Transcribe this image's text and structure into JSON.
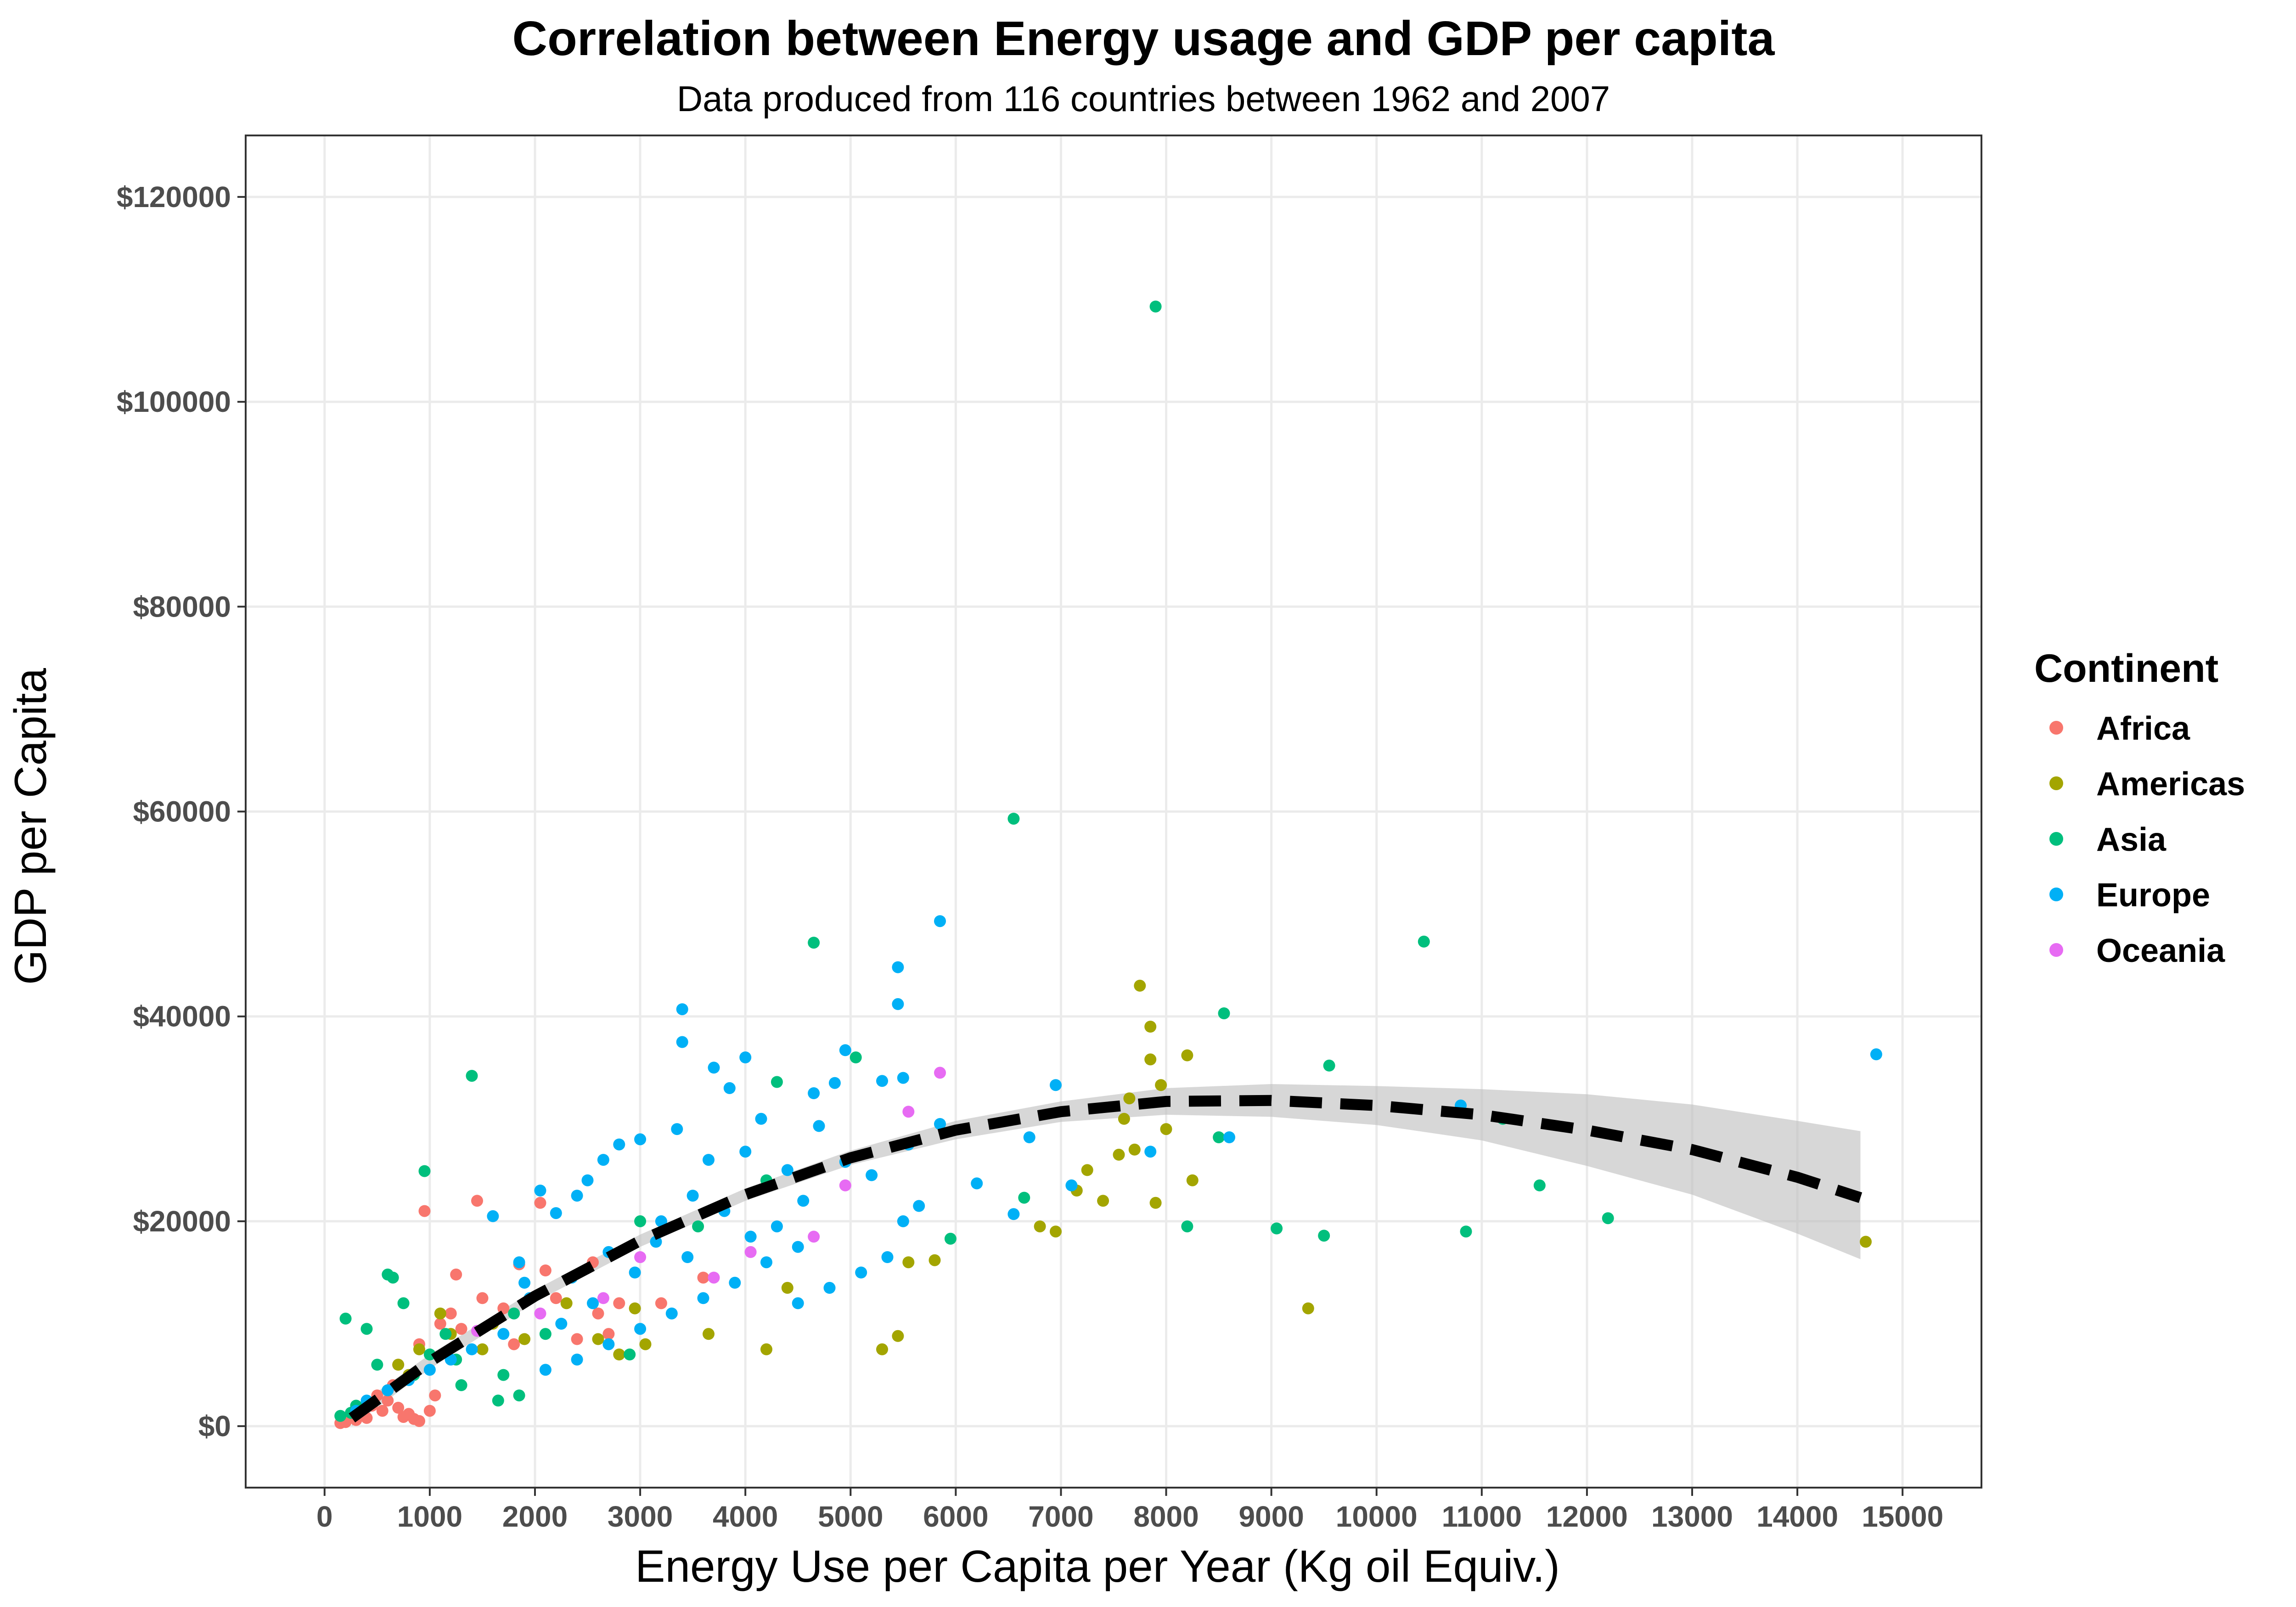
{
  "chart_data": {
    "type": "scatter",
    "title": "Correlation between Energy usage and GDP per capita",
    "subtitle": "Data produced from 116 countries between 1962 and 2007",
    "xlabel": "Energy Use per Capita per Year (Kg oil Equiv.)",
    "ylabel": "GDP per Capita",
    "xlim": [
      -750,
      15750
    ],
    "ylim": [
      -6000,
      126000
    ],
    "x_ticks": [
      0,
      1000,
      2000,
      3000,
      4000,
      5000,
      6000,
      7000,
      8000,
      9000,
      10000,
      11000,
      12000,
      13000,
      14000,
      15000
    ],
    "x_tick_labels": [
      "0",
      "1000",
      "2000",
      "3000",
      "4000",
      "5000",
      "6000",
      "7000",
      "8000",
      "9000",
      "10000",
      "11000",
      "12000",
      "13000",
      "14000",
      "15000"
    ],
    "y_ticks": [
      0,
      20000,
      40000,
      60000,
      80000,
      100000,
      120000
    ],
    "y_tick_labels": [
      "$0",
      "$20000",
      "$40000",
      "$60000",
      "$80000",
      "$100000",
      "$120000"
    ],
    "grid": true,
    "legend": {
      "title": "Continent",
      "position": "right",
      "entries": [
        {
          "name": "Africa",
          "color": "#F8766D"
        },
        {
          "name": "Americas",
          "color": "#A3A500"
        },
        {
          "name": "Asia",
          "color": "#00BF7D"
        },
        {
          "name": "Europe",
          "color": "#00B0F6"
        },
        {
          "name": "Oceania",
          "color": "#E76BF3"
        }
      ]
    },
    "series": [
      {
        "name": "Africa",
        "color": "#F8766D",
        "points": [
          [
            950,
            21000
          ],
          [
            1450,
            22000
          ],
          [
            2050,
            21800
          ],
          [
            1250,
            14800
          ],
          [
            1850,
            15800
          ],
          [
            2100,
            15200
          ],
          [
            2550,
            16000
          ],
          [
            1500,
            12500
          ],
          [
            1700,
            11500
          ],
          [
            2200,
            12500
          ],
          [
            2600,
            11000
          ],
          [
            2800,
            12000
          ],
          [
            3200,
            12000
          ],
          [
            1300,
            9500
          ],
          [
            1800,
            8000
          ],
          [
            2400,
            8500
          ],
          [
            2700,
            9000
          ],
          [
            3600,
            14500
          ],
          [
            500,
            3000
          ],
          [
            550,
            1500
          ],
          [
            600,
            2500
          ],
          [
            700,
            1800
          ],
          [
            750,
            900
          ],
          [
            800,
            1200
          ],
          [
            850,
            700
          ],
          [
            900,
            500
          ],
          [
            1000,
            1500
          ],
          [
            400,
            800
          ],
          [
            300,
            600
          ],
          [
            350,
            1200
          ],
          [
            200,
            400
          ],
          [
            150,
            300
          ],
          [
            250,
            900
          ],
          [
            650,
            4000
          ],
          [
            700,
            6000
          ],
          [
            900,
            8000
          ],
          [
            1100,
            10000
          ],
          [
            1200,
            11000
          ],
          [
            450,
            2000
          ],
          [
            1050,
            3000
          ]
        ]
      },
      {
        "name": "Americas",
        "color": "#A3A500",
        "points": [
          [
            7750,
            43000
          ],
          [
            7850,
            39000
          ],
          [
            7850,
            35800
          ],
          [
            8200,
            36200
          ],
          [
            7950,
            33300
          ],
          [
            7650,
            32000
          ],
          [
            7600,
            30000
          ],
          [
            8000,
            29000
          ],
          [
            7700,
            27000
          ],
          [
            7550,
            26500
          ],
          [
            7900,
            21800
          ],
          [
            8250,
            24000
          ],
          [
            7250,
            25000
          ],
          [
            6800,
            19500
          ],
          [
            6950,
            19000
          ],
          [
            7150,
            23000
          ],
          [
            7400,
            22000
          ],
          [
            5550,
            16000
          ],
          [
            5800,
            16200
          ],
          [
            4400,
            13500
          ],
          [
            4200,
            7500
          ],
          [
            5300,
            7500
          ],
          [
            5450,
            8800
          ],
          [
            9350,
            11500
          ],
          [
            14650,
            18000
          ],
          [
            3650,
            9000
          ],
          [
            2800,
            7000
          ],
          [
            2600,
            8500
          ],
          [
            3050,
            8000
          ],
          [
            2950,
            11500
          ],
          [
            1600,
            10000
          ],
          [
            1500,
            7500
          ],
          [
            1900,
            8500
          ],
          [
            1100,
            11000
          ],
          [
            900,
            7500
          ],
          [
            700,
            6000
          ],
          [
            800,
            5000
          ],
          [
            600,
            3500
          ],
          [
            1200,
            9000
          ],
          [
            2300,
            12000
          ]
        ]
      },
      {
        "name": "Asia",
        "color": "#00BF7D",
        "points": [
          [
            7900,
            109300
          ],
          [
            6550,
            59300
          ],
          [
            4650,
            47200
          ],
          [
            10450,
            47300
          ],
          [
            8550,
            40300
          ],
          [
            1400,
            34200
          ],
          [
            5050,
            36000
          ],
          [
            4300,
            33600
          ],
          [
            9550,
            35200
          ],
          [
            11200,
            30000
          ],
          [
            8500,
            28200
          ],
          [
            11550,
            23500
          ],
          [
            12200,
            20300
          ],
          [
            9050,
            19300
          ],
          [
            9500,
            18600
          ],
          [
            8200,
            19500
          ],
          [
            10850,
            19000
          ],
          [
            6650,
            22300
          ],
          [
            5950,
            18300
          ],
          [
            950,
            24900
          ],
          [
            600,
            14800
          ],
          [
            650,
            14500
          ],
          [
            200,
            10500
          ],
          [
            400,
            9500
          ],
          [
            750,
            12000
          ],
          [
            1700,
            5000
          ],
          [
            1850,
            3000
          ],
          [
            1650,
            2500
          ],
          [
            1300,
            4000
          ],
          [
            1000,
            7000
          ],
          [
            1150,
            9000
          ],
          [
            2100,
            9000
          ],
          [
            2900,
            7000
          ],
          [
            300,
            2000
          ],
          [
            250,
            1300
          ],
          [
            150,
            1000
          ],
          [
            500,
            6000
          ],
          [
            850,
            5000
          ],
          [
            1250,
            6500
          ],
          [
            1800,
            11000
          ],
          [
            3000,
            20000
          ],
          [
            3550,
            19500
          ],
          [
            4200,
            24000
          ]
        ]
      },
      {
        "name": "Europe",
        "color": "#00B0F6",
        "points": [
          [
            14750,
            36300
          ],
          [
            5850,
            49300
          ],
          [
            5450,
            44800
          ],
          [
            5450,
            41200
          ],
          [
            3400,
            40700
          ],
          [
            3400,
            37500
          ],
          [
            4000,
            36000
          ],
          [
            4950,
            36700
          ],
          [
            5300,
            33700
          ],
          [
            5500,
            34000
          ],
          [
            4850,
            33500
          ],
          [
            4650,
            32500
          ],
          [
            3700,
            35000
          ],
          [
            3850,
            33000
          ],
          [
            4150,
            30000
          ],
          [
            4700,
            29300
          ],
          [
            3350,
            29000
          ],
          [
            3000,
            28000
          ],
          [
            2800,
            27500
          ],
          [
            2650,
            26000
          ],
          [
            2500,
            24000
          ],
          [
            2400,
            22500
          ],
          [
            2050,
            23000
          ],
          [
            2200,
            20800
          ],
          [
            1600,
            20500
          ],
          [
            1850,
            16000
          ],
          [
            1900,
            14000
          ],
          [
            2350,
            14500
          ],
          [
            2700,
            17000
          ],
          [
            3200,
            20000
          ],
          [
            3500,
            22500
          ],
          [
            3650,
            26000
          ],
          [
            4000,
            26800
          ],
          [
            4400,
            25000
          ],
          [
            4550,
            22000
          ],
          [
            4950,
            25800
          ],
          [
            5200,
            24500
          ],
          [
            5550,
            27500
          ],
          [
            5650,
            21500
          ],
          [
            6200,
            23700
          ],
          [
            6550,
            20700
          ],
          [
            6700,
            28200
          ],
          [
            6950,
            33300
          ],
          [
            7100,
            23500
          ],
          [
            7850,
            26800
          ],
          [
            8600,
            28200
          ],
          [
            10800,
            31300
          ],
          [
            5850,
            29500
          ],
          [
            5500,
            20000
          ],
          [
            4500,
            17500
          ],
          [
            4200,
            16000
          ],
          [
            3900,
            14000
          ],
          [
            3600,
            12500
          ],
          [
            3300,
            11000
          ],
          [
            3000,
            9500
          ],
          [
            2700,
            8000
          ],
          [
            2400,
            6500
          ],
          [
            2100,
            5500
          ],
          [
            1700,
            9000
          ],
          [
            1400,
            7500
          ],
          [
            1200,
            6500
          ],
          [
            1000,
            5500
          ],
          [
            800,
            4500
          ],
          [
            600,
            3500
          ],
          [
            400,
            2500
          ],
          [
            300,
            1500
          ],
          [
            4500,
            12000
          ],
          [
            4800,
            13500
          ],
          [
            5100,
            15000
          ],
          [
            5350,
            16500
          ],
          [
            2950,
            15000
          ],
          [
            3150,
            18000
          ],
          [
            3800,
            21000
          ],
          [
            4300,
            19500
          ],
          [
            4050,
            18500
          ],
          [
            3450,
            16500
          ],
          [
            2550,
            12000
          ],
          [
            2250,
            10000
          ],
          [
            1950,
            12500
          ]
        ]
      },
      {
        "name": "Oceania",
        "color": "#E76BF3",
        "points": [
          [
            5850,
            34500
          ],
          [
            5550,
            30700
          ],
          [
            4950,
            23500
          ],
          [
            4650,
            18500
          ],
          [
            4050,
            17000
          ],
          [
            3700,
            14500
          ],
          [
            3000,
            16500
          ],
          [
            2650,
            12500
          ],
          [
            2050,
            11000
          ],
          [
            1450,
            9300
          ]
        ]
      }
    ],
    "trend": {
      "style": "dashed",
      "color": "#000000",
      "x": [
        260,
        1000,
        2000,
        3000,
        4000,
        5000,
        6000,
        7000,
        8000,
        9000,
        10000,
        11000,
        12000,
        13000,
        14000,
        14600
      ],
      "y": [
        800,
        6300,
        12700,
        18100,
        22600,
        26200,
        28900,
        30700,
        31700,
        31800,
        31300,
        30400,
        28900,
        27000,
        24300,
        22300
      ],
      "ci_lower": [
        0,
        5600,
        12100,
        17500,
        22000,
        25500,
        28000,
        29700,
        30400,
        30200,
        29400,
        27900,
        25400,
        22600,
        18800,
        16300
      ],
      "ci_upper": [
        1600,
        7000,
        13300,
        18700,
        23200,
        26900,
        29800,
        31700,
        33000,
        33400,
        33200,
        32900,
        32400,
        31400,
        29800,
        28800
      ]
    }
  }
}
